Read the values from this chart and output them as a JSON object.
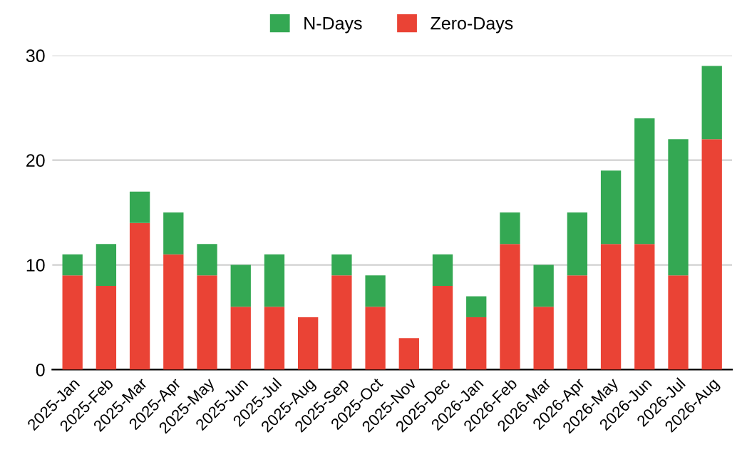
{
  "chart_data": {
    "type": "bar",
    "stacked": true,
    "categories": [
      "2025-Jan",
      "2025-Feb",
      "2025-Mar",
      "2025-Apr",
      "2025-May",
      "2025-Jun",
      "2025-Jul",
      "2025-Aug",
      "2025-Sep",
      "2025-Oct",
      "2025-Nov",
      "2025-Dec",
      "2026-Jan",
      "2026-Feb",
      "2026-Mar",
      "2026-Apr",
      "2026-May",
      "2026-Jun",
      "2026-Jul",
      "2026-Aug"
    ],
    "series": [
      {
        "name": "Zero-Days",
        "color": "#ea4335",
        "values": [
          9,
          8,
          14,
          11,
          9,
          6,
          6,
          5,
          9,
          6,
          3,
          8,
          5,
          12,
          6,
          9,
          12,
          12,
          9,
          22
        ]
      },
      {
        "name": "N-Days",
        "color": "#34a853",
        "values": [
          2,
          4,
          3,
          4,
          3,
          4,
          5,
          0,
          2,
          3,
          0,
          3,
          2,
          3,
          4,
          6,
          7,
          12,
          13,
          7
        ]
      }
    ],
    "ylim": [
      0,
      30
    ],
    "yticks": [
      0,
      10,
      20,
      30
    ],
    "grid": "y",
    "legend": "top"
  }
}
